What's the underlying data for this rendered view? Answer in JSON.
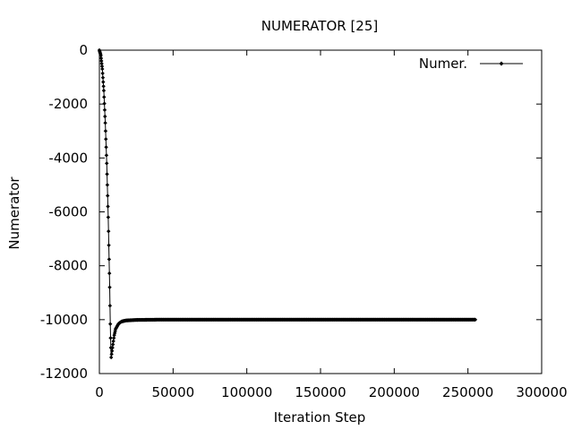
{
  "chart_data": {
    "type": "line",
    "title": "NUMERATOR [25]",
    "xlabel": "Iteration Step",
    "ylabel": "Numerator",
    "xlim": [
      0,
      300000
    ],
    "ylim": [
      -12000,
      0
    ],
    "xticks": [
      0,
      50000,
      100000,
      150000,
      200000,
      250000,
      300000
    ],
    "xtick_labels": [
      "0",
      "50000",
      "100000",
      "150000",
      "200000",
      "250000",
      "300000"
    ],
    "yticks": [
      0,
      -2000,
      -4000,
      -6000,
      -8000,
      -10000,
      -12000
    ],
    "ytick_labels": [
      "0",
      "-2000",
      "-4000",
      "-6000",
      "-8000",
      "-10000",
      "-12000"
    ],
    "grid": false,
    "legend_position": "top-right",
    "series": [
      {
        "name": "Numer.",
        "color": "#000000",
        "marker": "diamond",
        "x_range": [
          0,
          255000
        ],
        "keypoints": [
          [
            0,
            0
          ],
          [
            1000,
            -200
          ],
          [
            2000,
            -700
          ],
          [
            3000,
            -1500
          ],
          [
            4000,
            -2700
          ],
          [
            5000,
            -4200
          ],
          [
            6000,
            -6200
          ],
          [
            7000,
            -8800
          ],
          [
            7500,
            -10500
          ],
          [
            8000,
            -11400
          ],
          [
            9000,
            -11000
          ],
          [
            10000,
            -10600
          ],
          [
            11000,
            -10350
          ],
          [
            13000,
            -10150
          ],
          [
            15000,
            -10070
          ],
          [
            18000,
            -10030
          ],
          [
            25000,
            -10010
          ],
          [
            40000,
            -10000
          ],
          [
            255000,
            -10000
          ]
        ]
      }
    ]
  }
}
